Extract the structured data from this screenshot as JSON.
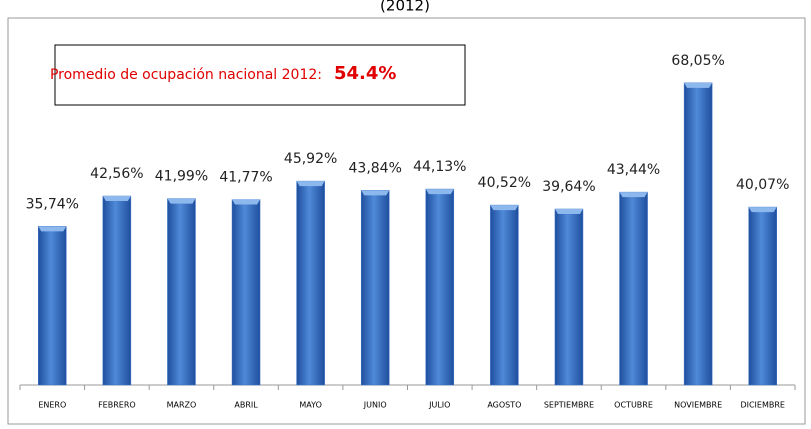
{
  "chart_data": {
    "type": "bar",
    "title": "(2012)",
    "annotation": {
      "text": "Promedio de ocupación nacional 2012:",
      "value_label": "54.4%"
    },
    "categories": [
      "ENERO",
      "FEBRERO",
      "MARZO",
      "ABRIL",
      "MAYO",
      "JUNIO",
      "JULIO",
      "AGOSTO",
      "SEPTIEMBRE",
      "OCTUBRE",
      "NOVIEMBRE",
      "DICIEMBRE"
    ],
    "values": [
      35.74,
      42.56,
      41.99,
      41.77,
      45.92,
      43.84,
      44.13,
      40.52,
      39.64,
      43.44,
      68.05,
      40.07
    ],
    "value_labels": [
      "35,74%",
      "42,56%",
      "41,99%",
      "41,77%",
      "45,92%",
      "43,84%",
      "44,13%",
      "40,52%",
      "39,64%",
      "43,44%",
      "68,05%",
      "40,07%"
    ],
    "color": "#3b72c6"
  }
}
